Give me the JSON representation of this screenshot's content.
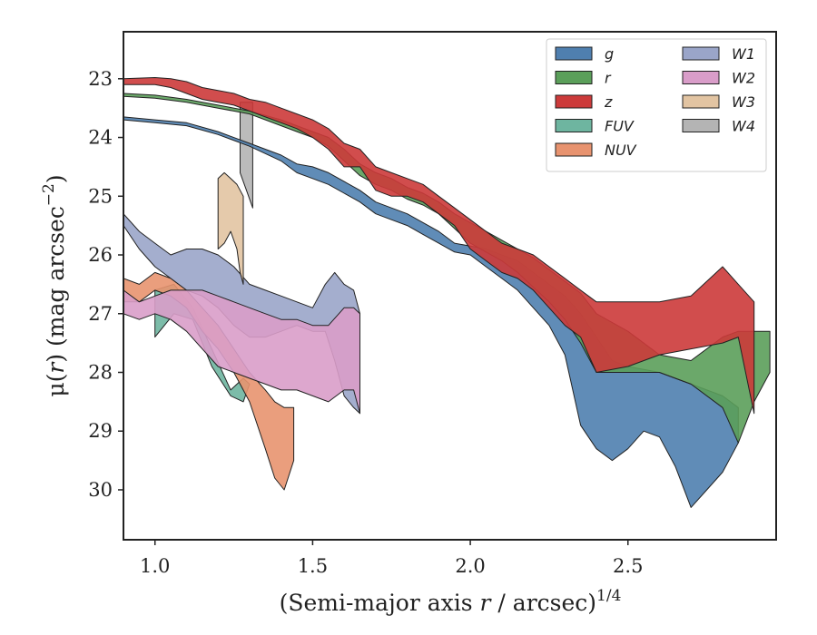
{
  "chart_data": {
    "type": "area",
    "xlabel_main": "(Semi-major axis ",
    "xlabel_var": "r",
    "xlabel_unit": " / arcsec)",
    "xlabel_sup": "1/4",
    "ylabel_mu": "μ(",
    "ylabel_var": "r",
    "ylabel_unit": ") (mag arcsec",
    "ylabel_sup": "−2",
    "ylabel_close": ")",
    "xlim": [
      0.9,
      2.97
    ],
    "ylim": [
      30.85,
      22.2
    ],
    "y_inverted": true,
    "xticks": [
      1.0,
      1.5,
      2.0,
      2.5
    ],
    "xtick_labels": [
      "1.0",
      "1.5",
      "2.0",
      "2.5"
    ],
    "yticks": [
      23,
      24,
      25,
      26,
      27,
      28,
      29,
      30
    ],
    "ytick_labels": [
      "23",
      "24",
      "25",
      "26",
      "27",
      "28",
      "29",
      "30"
    ],
    "grid": false,
    "legend_position": "top-right",
    "series": [
      {
        "name": "FUV",
        "color": "#6eb5a0",
        "x": [
          1.0,
          1.06,
          1.12,
          1.18,
          1.24,
          1.28,
          1.3,
          1.26,
          1.2,
          1.14,
          1.08,
          1.03,
          1.0
        ],
        "upper": [
          26.6,
          26.5,
          26.9,
          27.6,
          28.3,
          28.1,
          28.2,
          28.5,
          28.4,
          27.9,
          27.1,
          27.0,
          27.4
        ],
        "lower": [
          26.6,
          26.5,
          26.9,
          27.6,
          28.3,
          28.1,
          28.2,
          28.5,
          28.4,
          27.9,
          27.1,
          27.0,
          27.4
        ],
        "band_lo": [
          26.6,
          26.5,
          26.9,
          27.6,
          28.3,
          28.1,
          28.2
        ],
        "band_hi": [
          27.4,
          27.0,
          27.1,
          27.9,
          28.4,
          28.5,
          28.2
        ]
      },
      {
        "name": "NUV",
        "color": "#e8936f",
        "x": [
          0.9,
          0.95,
          1.0,
          1.05,
          1.1,
          1.15,
          1.2,
          1.25,
          1.3,
          1.35,
          1.38,
          1.41,
          1.44
        ],
        "band_lo": [
          26.4,
          26.5,
          26.3,
          26.4,
          26.6,
          26.9,
          27.2,
          27.6,
          28.0,
          28.3,
          28.5,
          28.6,
          28.6
        ],
        "band_hi": [
          26.8,
          26.8,
          26.6,
          26.7,
          26.9,
          27.3,
          27.6,
          28.0,
          28.5,
          29.3,
          29.8,
          30.0,
          29.5
        ]
      },
      {
        "name": "W1",
        "color": "#9aa5c9",
        "x": [
          0.9,
          0.95,
          1.0,
          1.05,
          1.1,
          1.15,
          1.2,
          1.25,
          1.3,
          1.35,
          1.4,
          1.45,
          1.5,
          1.54,
          1.57,
          1.6,
          1.63,
          1.65
        ],
        "band_lo": [
          25.3,
          25.6,
          25.8,
          26.0,
          25.9,
          25.9,
          26.0,
          26.2,
          26.5,
          26.6,
          26.7,
          26.8,
          26.9,
          26.5,
          26.3,
          26.5,
          26.6,
          27.0
        ],
        "band_hi": [
          25.5,
          25.9,
          26.2,
          26.4,
          26.6,
          26.7,
          26.9,
          27.2,
          27.4,
          27.4,
          27.3,
          27.2,
          27.3,
          27.3,
          27.8,
          28.4,
          28.6,
          28.7
        ]
      },
      {
        "name": "W2",
        "color": "#d99dc9",
        "x": [
          0.9,
          0.95,
          1.0,
          1.05,
          1.1,
          1.15,
          1.2,
          1.25,
          1.3,
          1.35,
          1.4,
          1.45,
          1.5,
          1.55,
          1.6,
          1.63,
          1.65
        ],
        "band_lo": [
          26.6,
          26.8,
          26.7,
          26.6,
          26.6,
          26.6,
          26.7,
          26.8,
          26.9,
          27.0,
          27.1,
          27.1,
          27.2,
          27.2,
          26.9,
          26.9,
          27.0
        ],
        "band_hi": [
          27.0,
          27.1,
          27.0,
          27.1,
          27.3,
          27.6,
          27.9,
          28.0,
          28.1,
          28.2,
          28.3,
          28.3,
          28.4,
          28.5,
          28.3,
          28.3,
          28.7
        ]
      },
      {
        "name": "W3",
        "color": "#e2c4a2",
        "x": [
          1.2,
          1.22,
          1.24,
          1.26,
          1.27,
          1.28
        ],
        "band_lo": [
          24.7,
          24.6,
          24.7,
          24.8,
          24.9,
          25.0
        ],
        "band_hi": [
          25.9,
          25.8,
          25.6,
          25.9,
          26.3,
          26.5
        ]
      },
      {
        "name": "W4",
        "color": "#b4b4b4",
        "x": [
          1.27,
          1.29,
          1.31
        ],
        "band_lo": [
          23.4,
          23.4,
          23.4
        ],
        "band_hi": [
          24.6,
          24.9,
          25.2
        ]
      },
      {
        "name": "g",
        "color": "#4f7faf",
        "x": [
          0.9,
          1.0,
          1.1,
          1.2,
          1.3,
          1.4,
          1.45,
          1.5,
          1.55,
          1.6,
          1.65,
          1.7,
          1.75,
          1.8,
          1.85,
          1.9,
          1.95,
          2.0,
          2.05,
          2.1,
          2.15,
          2.2,
          2.25,
          2.3,
          2.35,
          2.4,
          2.45,
          2.5,
          2.55,
          2.6,
          2.65,
          2.7,
          2.75,
          2.8,
          2.85
        ],
        "band_lo": [
          23.65,
          23.7,
          23.75,
          23.9,
          24.1,
          24.3,
          24.45,
          24.5,
          24.6,
          24.75,
          24.9,
          25.1,
          25.2,
          25.3,
          25.45,
          25.6,
          25.8,
          25.85,
          25.9,
          26.0,
          26.1,
          26.3,
          26.5,
          26.7,
          27.0,
          27.4,
          27.8,
          27.9,
          27.95,
          28.0,
          28.1,
          28.2,
          28.3,
          28.4,
          28.6
        ],
        "band_hi": [
          23.7,
          23.75,
          23.8,
          23.95,
          24.15,
          24.4,
          24.6,
          24.7,
          24.8,
          24.95,
          25.1,
          25.3,
          25.4,
          25.5,
          25.65,
          25.8,
          25.95,
          26.0,
          26.2,
          26.4,
          26.6,
          26.9,
          27.2,
          27.7,
          28.9,
          29.3,
          29.5,
          29.3,
          29.0,
          29.1,
          29.6,
          30.3,
          30.0,
          29.7,
          29.2
        ]
      },
      {
        "name": "r",
        "color": "#5b9f5a",
        "x": [
          0.9,
          1.0,
          1.1,
          1.2,
          1.3,
          1.4,
          1.45,
          1.5,
          1.55,
          1.6,
          1.65,
          1.7,
          1.75,
          1.8,
          1.85,
          1.9,
          1.95,
          2.0,
          2.05,
          2.1,
          2.15,
          2.2,
          2.25,
          2.3,
          2.35,
          2.4,
          2.5,
          2.6,
          2.7,
          2.8,
          2.85,
          2.9,
          2.95
        ],
        "band_lo": [
          23.25,
          23.28,
          23.35,
          23.45,
          23.55,
          23.7,
          23.8,
          23.9,
          24.0,
          24.2,
          24.45,
          24.6,
          24.7,
          24.85,
          24.95,
          25.1,
          25.3,
          25.45,
          25.6,
          25.75,
          25.9,
          26.05,
          26.25,
          26.45,
          26.65,
          27.0,
          27.3,
          27.7,
          27.8,
          27.4,
          27.3,
          27.3,
          27.3
        ],
        "band_hi": [
          23.3,
          23.33,
          23.4,
          23.5,
          23.6,
          23.8,
          23.9,
          24.0,
          24.15,
          24.4,
          24.65,
          24.8,
          24.9,
          25.05,
          25.15,
          25.3,
          25.55,
          25.8,
          25.95,
          26.1,
          26.3,
          26.55,
          26.8,
          27.1,
          27.5,
          28.0,
          28.0,
          28.0,
          28.2,
          28.6,
          29.2,
          28.5,
          28.0
        ]
      },
      {
        "name": "z",
        "color": "#cc3a3a",
        "x": [
          0.9,
          1.0,
          1.05,
          1.1,
          1.15,
          1.2,
          1.25,
          1.3,
          1.35,
          1.4,
          1.45,
          1.5,
          1.55,
          1.6,
          1.65,
          1.7,
          1.75,
          1.8,
          1.85,
          1.9,
          1.95,
          2.0,
          2.05,
          2.1,
          2.15,
          2.2,
          2.25,
          2.3,
          2.35,
          2.4,
          2.5,
          2.6,
          2.7,
          2.8,
          2.85,
          2.9
        ],
        "band_lo": [
          23.0,
          22.98,
          23.0,
          23.05,
          23.15,
          23.2,
          23.25,
          23.35,
          23.4,
          23.5,
          23.6,
          23.7,
          23.85,
          24.1,
          24.2,
          24.5,
          24.6,
          24.7,
          24.8,
          25.0,
          25.2,
          25.4,
          25.6,
          25.8,
          25.9,
          26.0,
          26.2,
          26.4,
          26.6,
          26.8,
          26.8,
          26.8,
          26.7,
          26.2,
          26.5,
          26.8
        ],
        "band_hi": [
          23.1,
          23.1,
          23.15,
          23.25,
          23.35,
          23.4,
          23.45,
          23.55,
          23.65,
          23.75,
          23.85,
          24.0,
          24.2,
          24.5,
          24.5,
          24.9,
          25.0,
          25.0,
          25.1,
          25.3,
          25.5,
          25.9,
          26.1,
          26.3,
          26.4,
          26.6,
          26.9,
          27.2,
          27.4,
          28.0,
          27.9,
          27.7,
          27.6,
          27.5,
          27.4,
          28.7
        ]
      }
    ]
  }
}
